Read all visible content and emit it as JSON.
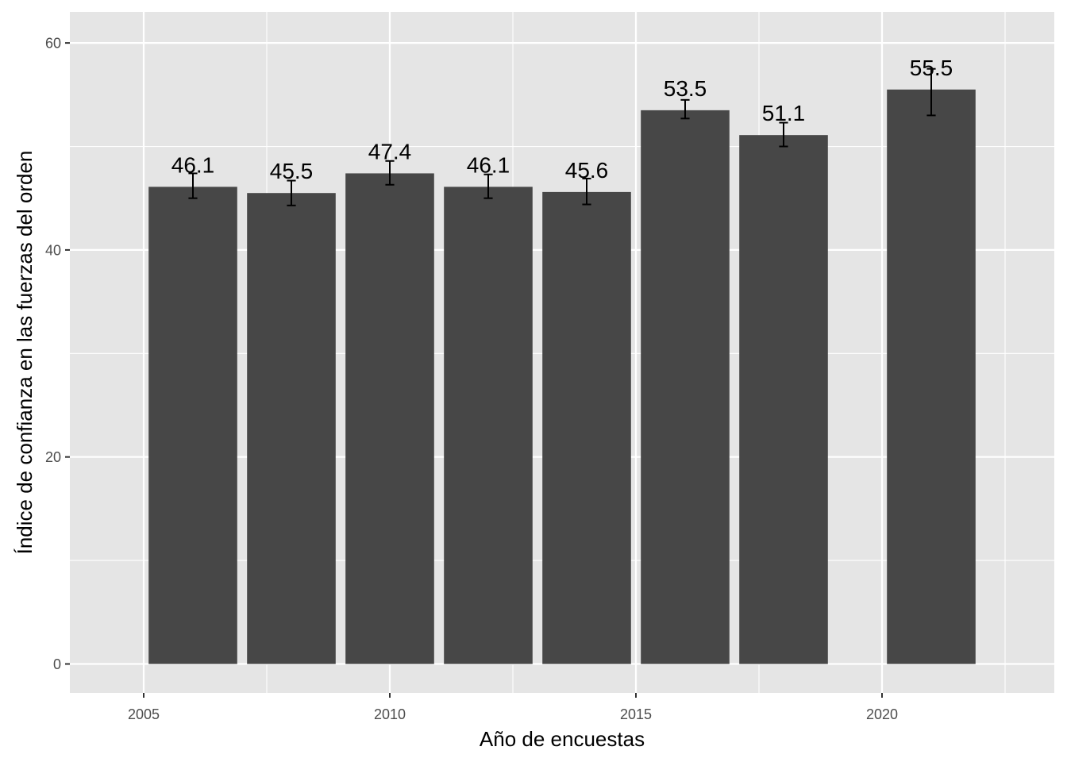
{
  "chart_data": {
    "type": "bar",
    "title": "",
    "xlabel": "Año de encuestas",
    "ylabel": "Índice de confianza en las fuerzas del orden",
    "x": [
      2006,
      2008,
      2010,
      2012,
      2014,
      2016,
      2018,
      2021
    ],
    "values": [
      46.1,
      45.5,
      47.4,
      46.1,
      45.6,
      53.5,
      51.1,
      55.5
    ],
    "labels": [
      "46.1",
      "45.5",
      "47.4",
      "46.1",
      "45.6",
      "53.5",
      "51.1",
      "55.5"
    ],
    "error_low": [
      45.0,
      44.3,
      46.3,
      45.0,
      44.4,
      52.7,
      50.0,
      53.0
    ],
    "error_high": [
      47.4,
      46.7,
      48.6,
      47.3,
      46.9,
      54.5,
      52.3,
      57.5
    ],
    "xlim": [
      2003.5,
      2023.5
    ],
    "ylim": [
      -2.8,
      63
    ],
    "xticks": [
      "2005",
      "2010",
      "2015",
      "2020"
    ],
    "yticks": [
      "0",
      "20",
      "40",
      "60"
    ],
    "grid": true,
    "colors": {
      "bar": "#474747",
      "panel": "#e5e5e5",
      "grid": "#ffffff",
      "error_bar": "#000000"
    }
  }
}
